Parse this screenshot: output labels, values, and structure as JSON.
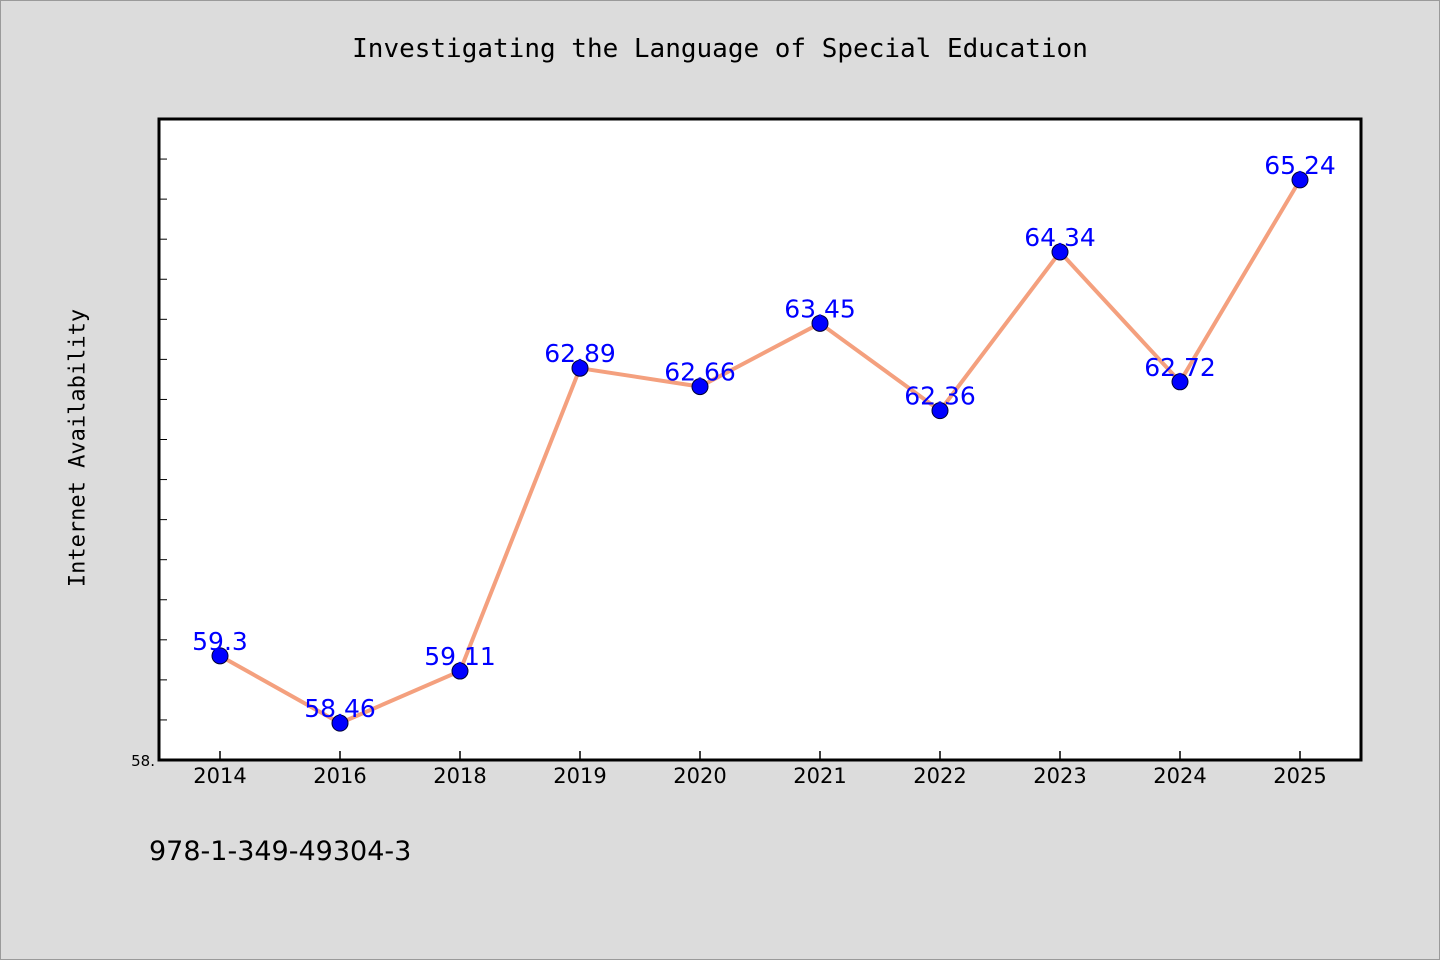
{
  "chart_data": {
    "type": "line",
    "title": "Investigating the Language of Special Education",
    "xlabel": "",
    "ylabel": "Internet Availability",
    "categories": [
      "2014",
      "2016",
      "2018",
      "2019",
      "2020",
      "2021",
      "2022",
      "2023",
      "2024",
      "2025"
    ],
    "series": [
      {
        "values": [
          59.3,
          58.46,
          59.11,
          62.89,
          62.66,
          63.45,
          62.36,
          64.34,
          62.72,
          65.24
        ],
        "data_labels": [
          "59.3",
          "58.46",
          "59.11",
          "62.89",
          "62.66",
          "63.45",
          "62.36",
          "64.34",
          "62.72",
          "65.24"
        ],
        "line_color": "#f4a07e",
        "marker_color": "#0000ff",
        "label_color": "#0000ff"
      }
    ],
    "ylim": [
      58.0,
      66.0
    ],
    "y_tick_labels": [
      "58."
    ],
    "y_minor_tick_step": 0.5,
    "grid": false,
    "legend": "none"
  },
  "annotations": {
    "footer_code": "978-1-349-49304-3"
  },
  "colors": {
    "background": "#dcdcdc",
    "plot_area": "#ffffff",
    "axes": "#000000"
  }
}
